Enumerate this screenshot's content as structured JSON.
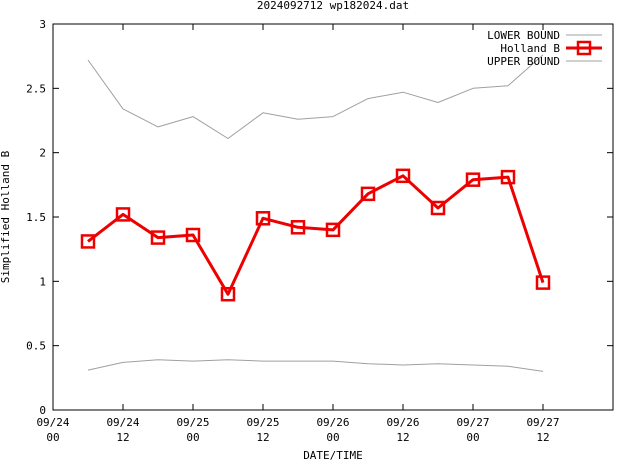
{
  "chart_data": {
    "type": "line",
    "title": "2024092712 wp182024.dat",
    "xlabel": "DATE/TIME",
    "ylabel": "Simplified Holland B",
    "xlim": [
      0,
      96
    ],
    "ylim": [
      0,
      3
    ],
    "grid": false,
    "legend_position": "top-right",
    "x_ticks": [
      {
        "value": 0,
        "line1": "09/24",
        "line2": "00"
      },
      {
        "value": 12,
        "line1": "09/24",
        "line2": "12"
      },
      {
        "value": 24,
        "line1": "09/25",
        "line2": "00"
      },
      {
        "value": 36,
        "line1": "09/25",
        "line2": "12"
      },
      {
        "value": 48,
        "line1": "09/26",
        "line2": "00"
      },
      {
        "value": 60,
        "line1": "09/26",
        "line2": "12"
      },
      {
        "value": 72,
        "line1": "09/27",
        "line2": "00"
      },
      {
        "value": 84,
        "line1": "09/27",
        "line2": "12"
      }
    ],
    "y_ticks": [
      {
        "value": 0,
        "label": "0"
      },
      {
        "value": 0.5,
        "label": "0.5"
      },
      {
        "value": 1,
        "label": "1"
      },
      {
        "value": 1.5,
        "label": "1.5"
      },
      {
        "value": 2,
        "label": "2"
      },
      {
        "value": 2.5,
        "label": "2.5"
      },
      {
        "value": 3,
        "label": "3"
      }
    ],
    "x": [
      6,
      12,
      18,
      24,
      30,
      36,
      42,
      48,
      54,
      60,
      66,
      72,
      78,
      84
    ],
    "series": [
      {
        "name": "LOWER BOUND",
        "color": "#a0a0a0",
        "marker": "none",
        "values": [
          0.31,
          0.37,
          0.39,
          0.38,
          0.39,
          0.38,
          0.38,
          0.38,
          0.36,
          0.35,
          0.36,
          0.35,
          0.34,
          0.3
        ]
      },
      {
        "name": "Holland B",
        "color": "#ee0000",
        "marker": "square",
        "values": [
          1.31,
          1.52,
          1.34,
          1.36,
          0.9,
          1.49,
          1.42,
          1.4,
          1.68,
          1.82,
          1.57,
          1.79,
          1.81,
          0.99
        ]
      },
      {
        "name": "UPPER BOUND",
        "color": "#a0a0a0",
        "marker": "none",
        "values": [
          2.72,
          2.34,
          2.2,
          2.28,
          2.11,
          2.31,
          2.26,
          2.28,
          2.42,
          2.47,
          2.39,
          2.5,
          2.52,
          2.76
        ]
      }
    ]
  }
}
